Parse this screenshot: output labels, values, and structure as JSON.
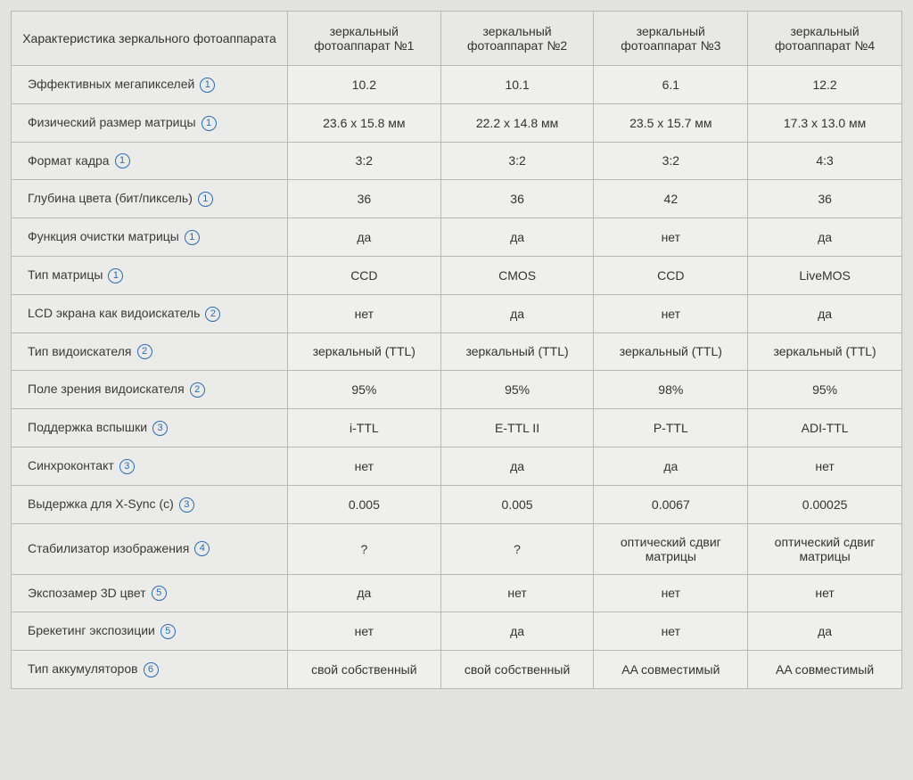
{
  "table": {
    "type": "table",
    "header_bg": "#e8e8e6",
    "label_bg": "#ebebea",
    "value_bg": "#efefee",
    "border_color": "#b8b8b6",
    "info_icon_color": "#2b6cb0",
    "font_size": 14,
    "columns": [
      "Характеристика зеркального фотоаппарата",
      "зеркальный фотоаппарат №1",
      "зеркальный фотоаппарат №2",
      "зеркальный фотоаппарат №3",
      "зеркальный фотоаппарат №4"
    ],
    "rows": [
      {
        "label": "Эффективных мегапикселей",
        "note": "1",
        "values": [
          "10.2",
          "10.1",
          "6.1",
          "12.2"
        ]
      },
      {
        "label": "Физический размер матрицы",
        "note": "1",
        "values": [
          "23.6 x 15.8 мм",
          "22.2 x 14.8 мм",
          "23.5 x 15.7 мм",
          "17.3 x 13.0 мм"
        ]
      },
      {
        "label": "Формат кадра",
        "note": "1",
        "values": [
          "3:2",
          "3:2",
          "3:2",
          "4:3"
        ]
      },
      {
        "label": "Глубина цвета (бит/пиксель)",
        "note": "1",
        "values": [
          "36",
          "36",
          "42",
          "36"
        ]
      },
      {
        "label": "Функция очистки матрицы",
        "note": "1",
        "values": [
          "да",
          "да",
          "нет",
          "да"
        ]
      },
      {
        "label": "Тип матрицы",
        "note": "1",
        "values": [
          "CCD",
          "CMOS",
          "CCD",
          "LiveMOS"
        ]
      },
      {
        "label": "LCD экрана как видоискатель",
        "note": "2",
        "values": [
          "нет",
          "да",
          "нет",
          "да"
        ]
      },
      {
        "label": "Тип видоискателя",
        "note": "2",
        "values": [
          "зеркальный (TTL)",
          "зеркальный (TTL)",
          "зеркальный (TTL)",
          "зеркальный (TTL)"
        ]
      },
      {
        "label": "Поле зрения видоискателя",
        "note": "2",
        "values": [
          "95%",
          "95%",
          "98%",
          "95%"
        ]
      },
      {
        "label": "Поддержка вспышки",
        "note": "3",
        "values": [
          "i-TTL",
          "E-TTL II",
          "P-TTL",
          "ADI-TTL"
        ]
      },
      {
        "label": "Синхроконтакт",
        "note": "3",
        "values": [
          "нет",
          "да",
          "да",
          "нет"
        ]
      },
      {
        "label": "Выдержка для X-Sync (с)",
        "note": "3",
        "values": [
          "0.005",
          "0.005",
          "0.0067",
          "0.00025"
        ]
      },
      {
        "label": "Стабилизатор изображения",
        "note": "4",
        "values": [
          "?",
          "?",
          "оптический сдвиг матрицы",
          "оптический сдвиг матрицы"
        ]
      },
      {
        "label": "Экспозамер 3D цвет",
        "note": "5",
        "values": [
          "да",
          "нет",
          "нет",
          "нет"
        ]
      },
      {
        "label": "Брекетинг экспозиции",
        "note": "5",
        "values": [
          "нет",
          "да",
          "нет",
          "да"
        ]
      },
      {
        "label": "Тип аккумуляторов",
        "note": "6",
        "values": [
          "свой собственный",
          "свой собственный",
          "AA совместимый",
          "AA совместимый"
        ]
      }
    ]
  }
}
